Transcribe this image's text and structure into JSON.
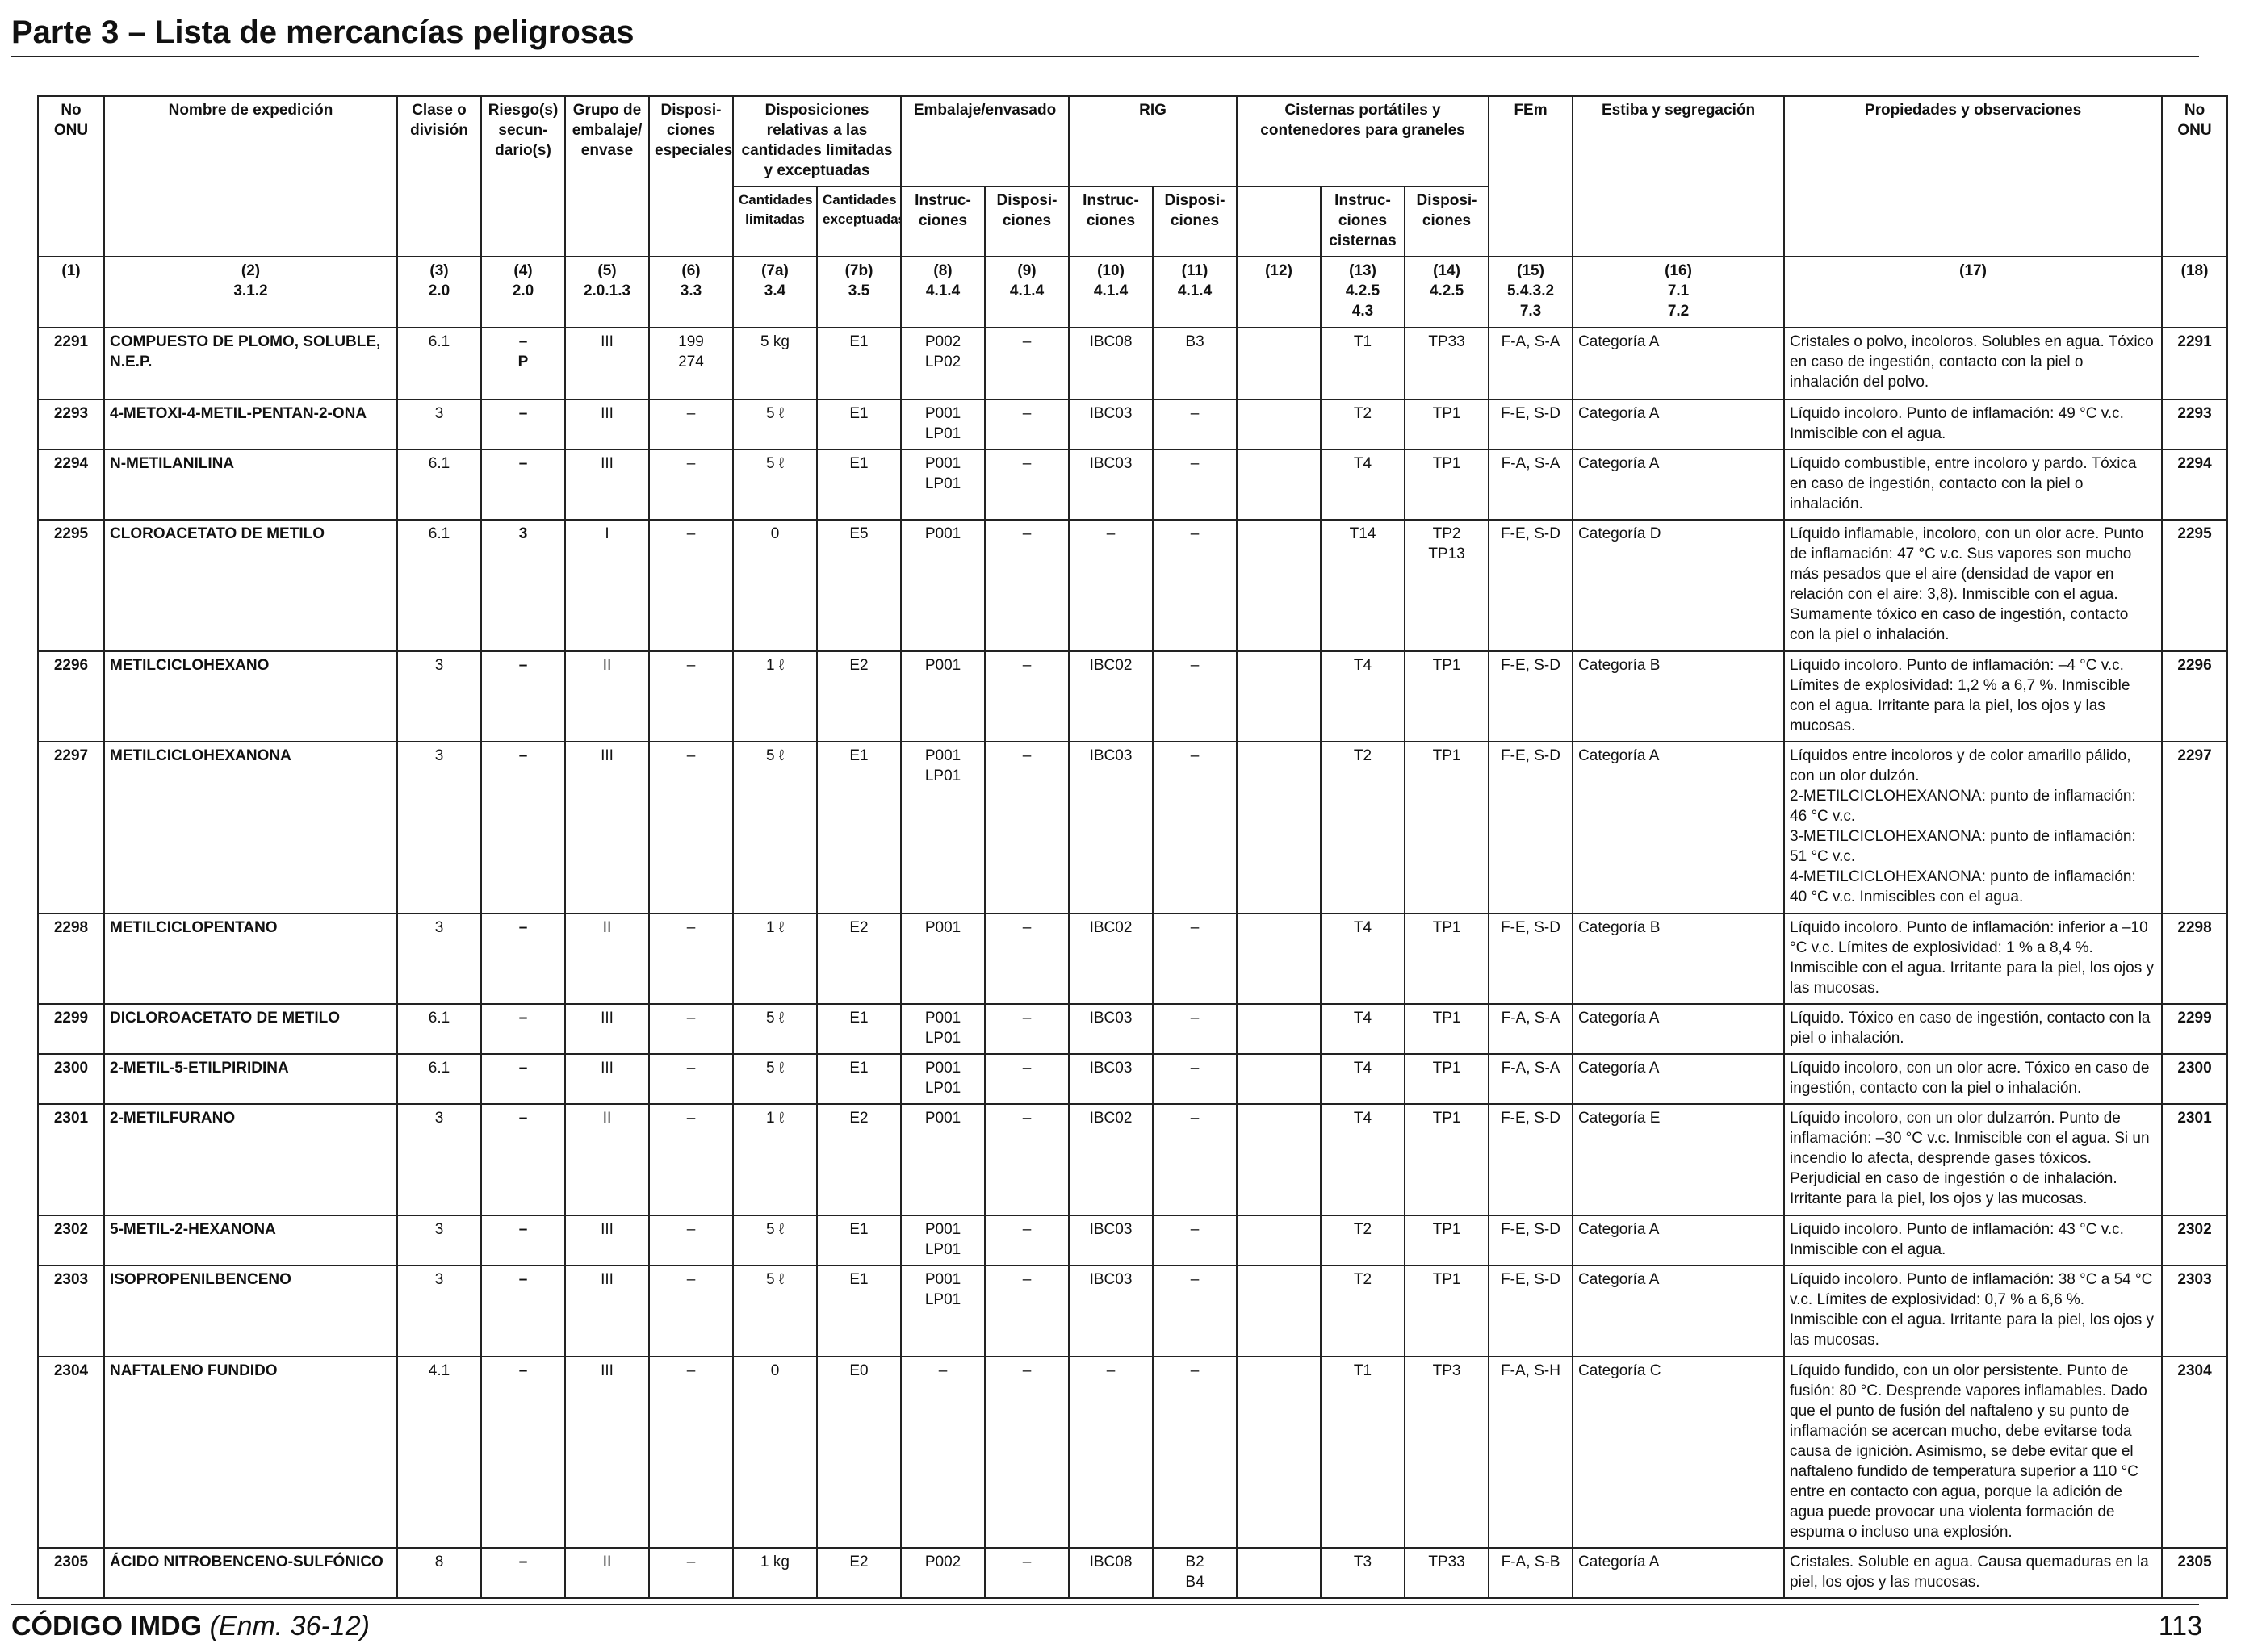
{
  "page_title": "Parte 3 – Lista de mercancías peligrosas",
  "headers": {
    "no_onu": "No ONU",
    "nombre": "Nombre de expedición",
    "clase": "Clase o división",
    "riesgo": "Riesgo(s) secun-dario(s)",
    "grupo": "Grupo de embalaje/ envase",
    "dispo_esp": "Disposi-ciones especiales",
    "disp_rel": "Disposiciones relativas a las cantidades limitadas y exceptuadas",
    "cant_lim": "Cantidades limitadas",
    "cant_exc": "Cantidades exceptuadas",
    "embalaje": "Embalaje/envasado",
    "rig": "RIG",
    "cisternas": "Cisternas portátiles y contenedores para graneles",
    "instruc": "Instruc-ciones",
    "disposi": "Disposi-ciones",
    "instruc_cist": "Instruc-ciones cisternas",
    "fem": "FEm",
    "estiba": "Estiba y segregación",
    "propiedades": "Propiedades y observaciones"
  },
  "refs": {
    "c1": "(1)",
    "c2": "(2)\n3.1.2",
    "c3": "(3)\n2.0",
    "c4": "(4)\n2.0",
    "c5": "(5)\n2.0.1.3",
    "c6": "(6)\n3.3",
    "c7a": "(7a)\n3.4",
    "c7b": "(7b)\n3.5",
    "c8": "(8)\n4.1.4",
    "c9": "(9)\n4.1.4",
    "c10": "(10)\n4.1.4",
    "c11": "(11)\n4.1.4",
    "c12": "(12)",
    "c13": "(13)\n4.2.5\n4.3",
    "c14": "(14)\n4.2.5",
    "c15": "(15)\n5.4.3.2\n7.3",
    "c16": "(16)\n7.1\n7.2",
    "c17": "(17)",
    "c18": "(18)"
  },
  "rows": [
    {
      "un": "2291",
      "name": "COMPUESTO DE PLOMO, SOLUBLE, N.E.P.",
      "class": "6.1",
      "sub": "–\nP",
      "pg": "III",
      "sp": "199\n274",
      "lq": "5 kg",
      "eq": "E1",
      "pi": "P002\nLP02",
      "pp": "–",
      "ibc": "IBC08",
      "ibcp": "B3",
      "col12": "",
      "tank": "T1",
      "tankp": "TP33",
      "ems": "F-A, S-A",
      "stow": "Categoría A",
      "props": "Cristales o polvo, incoloros. Solubles en agua. Tóxico en caso de ingestión, contacto con la piel o inhalación del polvo.",
      "un_r": "2291"
    },
    {
      "un": "2293",
      "name": "4-METOXI-4-METIL-PENTAN-2-ONA",
      "class": "3",
      "sub": "–",
      "pg": "III",
      "sp": "–",
      "lq": "5 ℓ",
      "eq": "E1",
      "pi": "P001\nLP01",
      "pp": "–",
      "ibc": "IBC03",
      "ibcp": "–",
      "col12": "",
      "tank": "T2",
      "tankp": "TP1",
      "ems": "F-E, S-D",
      "stow": "Categoría A",
      "props": "Líquido incoloro. Punto de inflamación: 49 °C v.c. Inmiscible con el agua.",
      "un_r": "2293"
    },
    {
      "un": "2294",
      "name": "N-METILANILINA",
      "class": "6.1",
      "sub": "–",
      "pg": "III",
      "sp": "–",
      "lq": "5 ℓ",
      "eq": "E1",
      "pi": "P001\nLP01",
      "pp": "–",
      "ibc": "IBC03",
      "ibcp": "–",
      "col12": "",
      "tank": "T4",
      "tankp": "TP1",
      "ems": "F-A, S-A",
      "stow": "Categoría A",
      "props": "Líquido combustible, entre incoloro y pardo. Tóxica en caso de ingestión, contacto con la piel o inhalación.",
      "un_r": "2294"
    },
    {
      "un": "2295",
      "name": "CLOROACETATO DE METILO",
      "class": "6.1",
      "sub": "3",
      "pg": "I",
      "sp": "–",
      "lq": "0",
      "eq": "E5",
      "pi": "P001",
      "pp": "–",
      "ibc": "–",
      "ibcp": "–",
      "col12": "",
      "tank": "T14",
      "tankp": "TP2\nTP13",
      "ems": "F-E, S-D",
      "stow": "Categoría D",
      "props": "Líquido inflamable, incoloro, con un olor acre. Punto de inflamación: 47 °C v.c. Sus vapores son mucho más pesados que el aire (densidad de vapor en relación con el aire: 3,8). Inmiscible con el agua. Sumamente tóxico en caso de ingestión, contacto con la piel o inhalación.",
      "un_r": "2295"
    },
    {
      "un": "2296",
      "name": "METILCICLOHEXANO",
      "class": "3",
      "sub": "–",
      "pg": "II",
      "sp": "–",
      "lq": "1 ℓ",
      "eq": "E2",
      "pi": "P001",
      "pp": "–",
      "ibc": "IBC02",
      "ibcp": "–",
      "col12": "",
      "tank": "T4",
      "tankp": "TP1",
      "ems": "F-E, S-D",
      "stow": "Categoría B",
      "props": "Líquido incoloro. Punto de inflamación: –4 °C v.c. Límites de explosividad: 1,2 % a 6,7 %. Inmiscible con el agua. Irritante para la piel, los ojos y las mucosas.",
      "un_r": "2296"
    },
    {
      "un": "2297",
      "name": "METILCICLOHEXANONA",
      "class": "3",
      "sub": "–",
      "pg": "III",
      "sp": "–",
      "lq": "5 ℓ",
      "eq": "E1",
      "pi": "P001\nLP01",
      "pp": "–",
      "ibc": "IBC03",
      "ibcp": "–",
      "col12": "",
      "tank": "T2",
      "tankp": "TP1",
      "ems": "F-E, S-D",
      "stow": "Categoría A",
      "props": "Líquidos entre incoloros y de color amarillo pálido, con un olor dulzón.\n2-METILCICLOHEXANONA: punto de inflamación: 46 °C v.c.\n3-METILCICLOHEXANONA: punto de inflamación: 51 °C v.c.\n4-METILCICLOHEXANONA: punto de inflamación: 40 °C v.c. Inmiscibles con el agua.",
      "un_r": "2297"
    },
    {
      "un": "2298",
      "name": "METILCICLOPENTANO",
      "class": "3",
      "sub": "–",
      "pg": "II",
      "sp": "–",
      "lq": "1 ℓ",
      "eq": "E2",
      "pi": "P001",
      "pp": "–",
      "ibc": "IBC02",
      "ibcp": "–",
      "col12": "",
      "tank": "T4",
      "tankp": "TP1",
      "ems": "F-E, S-D",
      "stow": "Categoría B",
      "props": "Líquido incoloro. Punto de inflamación: inferior a –10 °C v.c. Límites de explosividad: 1 % a 8,4 %. Inmiscible con el agua. Irritante para la piel, los ojos y las mucosas.",
      "un_r": "2298"
    },
    {
      "un": "2299",
      "name": "DICLOROACETATO DE METILO",
      "class": "6.1",
      "sub": "–",
      "pg": "III",
      "sp": "–",
      "lq": "5 ℓ",
      "eq": "E1",
      "pi": "P001\nLP01",
      "pp": "–",
      "ibc": "IBC03",
      "ibcp": "–",
      "col12": "",
      "tank": "T4",
      "tankp": "TP1",
      "ems": "F-A, S-A",
      "stow": "Categoría A",
      "props": "Líquido. Tóxico en caso de ingestión, contacto con la piel o inhalación.",
      "un_r": "2299"
    },
    {
      "un": "2300",
      "name": "2-METIL-5-ETILPIRIDINA",
      "class": "6.1",
      "sub": "–",
      "pg": "III",
      "sp": "–",
      "lq": "5 ℓ",
      "eq": "E1",
      "pi": "P001\nLP01",
      "pp": "–",
      "ibc": "IBC03",
      "ibcp": "–",
      "col12": "",
      "tank": "T4",
      "tankp": "TP1",
      "ems": "F-A, S-A",
      "stow": "Categoría A",
      "props": "Líquido incoloro, con un olor acre. Tóxico en caso de ingestión, contacto con la piel o inhalación.",
      "un_r": "2300"
    },
    {
      "un": "2301",
      "name": "2-METILFURANO",
      "class": "3",
      "sub": "–",
      "pg": "II",
      "sp": "–",
      "lq": "1 ℓ",
      "eq": "E2",
      "pi": "P001",
      "pp": "–",
      "ibc": "IBC02",
      "ibcp": "–",
      "col12": "",
      "tank": "T4",
      "tankp": "TP1",
      "ems": "F-E, S-D",
      "stow": "Categoría E",
      "props": "Líquido incoloro, con un olor dulzarrón. Punto de inflamación: –30 °C v.c. Inmiscible con el agua. Si un incendio lo afecta, desprende gases tóxicos. Perjudicial en caso de ingestión o de inhalación. Irritante para la piel, los ojos y las mucosas.",
      "un_r": "2301"
    },
    {
      "un": "2302",
      "name": "5-METIL-2-HEXANONA",
      "class": "3",
      "sub": "–",
      "pg": "III",
      "sp": "–",
      "lq": "5 ℓ",
      "eq": "E1",
      "pi": "P001\nLP01",
      "pp": "–",
      "ibc": "IBC03",
      "ibcp": "–",
      "col12": "",
      "tank": "T2",
      "tankp": "TP1",
      "ems": "F-E, S-D",
      "stow": "Categoría A",
      "props": "Líquido incoloro. Punto de inflamación: 43 °C v.c. Inmiscible con el agua.",
      "un_r": "2302"
    },
    {
      "un": "2303",
      "name": "ISOPROPENILBENCENO",
      "class": "3",
      "sub": "–",
      "pg": "III",
      "sp": "–",
      "lq": "5 ℓ",
      "eq": "E1",
      "pi": "P001\nLP01",
      "pp": "–",
      "ibc": "IBC03",
      "ibcp": "–",
      "col12": "",
      "tank": "T2",
      "tankp": "TP1",
      "ems": "F-E, S-D",
      "stow": "Categoría A",
      "props": "Líquido incoloro. Punto de inflamación: 38 °C a 54 °C v.c. Límites de explosividad: 0,7 % a 6,6 %. Inmiscible con el agua. Irritante para la piel, los ojos y las mucosas.",
      "un_r": "2303"
    },
    {
      "un": "2304",
      "name": "NAFTALENO FUNDIDO",
      "class": "4.1",
      "sub": "–",
      "pg": "III",
      "sp": "–",
      "lq": "0",
      "eq": "E0",
      "pi": "–",
      "pp": "–",
      "ibc": "–",
      "ibcp": "–",
      "col12": "",
      "tank": "T1",
      "tankp": "TP3",
      "ems": "F-A, S-H",
      "stow": "Categoría C",
      "props": "Líquido fundido, con un olor persistente. Punto de fusión: 80 °C. Desprende vapores inflamables. Dado que el punto de fusión del naftaleno y su punto de inflamación se acercan mucho, debe evitarse toda causa de ignición. Asimismo, se debe evitar que el naftaleno fundido de temperatura superior a 110 °C entre en contacto con agua, porque la adición de agua puede provocar una violenta formación de espuma o incluso una explosión.",
      "un_r": "2304"
    },
    {
      "un": "2305",
      "name": "ÁCIDO NITROBENCENO-SULFÓNICO",
      "class": "8",
      "sub": "–",
      "pg": "II",
      "sp": "–",
      "lq": "1 kg",
      "eq": "E2",
      "pi": "P002",
      "pp": "–",
      "ibc": "IBC08",
      "ibcp": "B2\nB4",
      "col12": "",
      "tank": "T3",
      "tankp": "TP33",
      "ems": "F-A, S-B",
      "stow": "Categoría A",
      "props": "Cristales. Soluble en agua. Causa quemaduras en la piel, los ojos y las mucosas.",
      "un_r": "2305"
    }
  ],
  "footer": {
    "code": "CÓDIGO IMDG",
    "amendment": "(Enm. 36-12)",
    "page_number": "113"
  }
}
